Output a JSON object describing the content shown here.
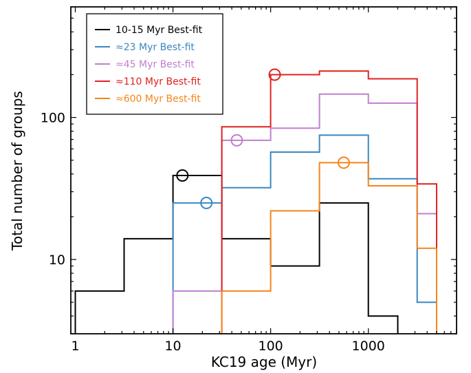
{
  "chart_data": {
    "type": "step",
    "title": "",
    "xlabel": "KC19 age (Myr)",
    "ylabel": "Total number of groups",
    "xscale": "log",
    "yscale": "log",
    "xlim": [
      0.9,
      8000
    ],
    "ylim": [
      3,
      600
    ],
    "x_ticks": [
      1,
      10,
      100,
      1000
    ],
    "x_tick_labels": [
      "1",
      "10",
      "100",
      "1000"
    ],
    "y_ticks": [
      10,
      100
    ],
    "y_tick_labels": [
      "10",
      "100"
    ],
    "legend_position": "top-left",
    "series": [
      {
        "name": "10-15 Myr Best-fit",
        "color": "#000000",
        "edges": [
          1,
          3.16,
          10,
          31.6,
          100,
          316,
          1000,
          2000
        ],
        "values": [
          6,
          14,
          39,
          14,
          9,
          25,
          4
        ],
        "marker": {
          "x": 12.5,
          "y": 39
        }
      },
      {
        "name": "≈23 Myr Best-fit",
        "color": "#3a87c0",
        "edges": [
          10,
          31.6,
          100,
          316,
          1000,
          3160,
          5000
        ],
        "values": [
          25,
          32,
          57,
          75,
          37,
          5
        ],
        "marker": {
          "x": 22,
          "y": 25
        }
      },
      {
        "name": "≈45 Myr Best-fit",
        "color": "#bf7fcf",
        "edges": [
          10,
          31.6,
          100,
          316,
          1000,
          3160,
          5000
        ],
        "values": [
          6,
          69,
          84,
          146,
          126,
          21
        ],
        "marker": {
          "x": 45,
          "y": 69
        }
      },
      {
        "name": "≈110 Myr Best-fit",
        "color": "#e02020",
        "edges": [
          31.6,
          100,
          316,
          1000,
          3160,
          5000
        ],
        "values": [
          86,
          200,
          212,
          187,
          34
        ],
        "marker": {
          "x": 110,
          "y": 200
        }
      },
      {
        "name": "≈600 Myr Best-fit",
        "color": "#f58518",
        "edges": [
          31.6,
          100,
          316,
          1000,
          3160,
          5000
        ],
        "values": [
          6,
          22,
          48,
          33,
          12
        ],
        "marker": {
          "x": 560,
          "y": 48
        }
      }
    ]
  }
}
